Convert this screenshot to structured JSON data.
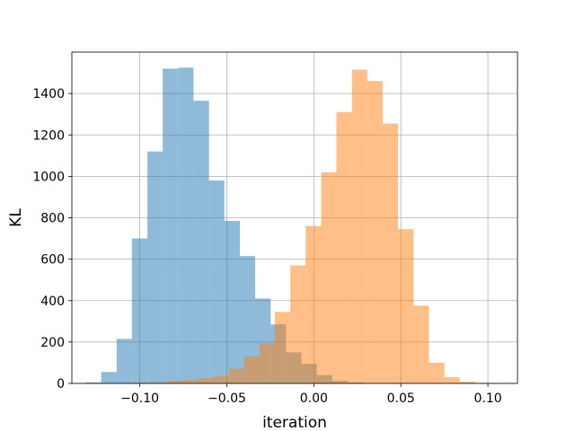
{
  "chart_data": {
    "type": "bar",
    "subtype": "histogram",
    "title": "",
    "xlabel": "iteration",
    "ylabel": "KL",
    "xlim": [
      -0.139,
      0.117
    ],
    "ylim": [
      0,
      1600
    ],
    "grid": true,
    "legend": "none",
    "x_ticks": [
      -0.1,
      -0.05,
      0.0,
      0.05,
      0.1
    ],
    "x_tick_labels": [
      "−0.10",
      "−0.05",
      "0.00",
      "0.05",
      "0.10"
    ],
    "y_ticks": [
      0,
      200,
      400,
      600,
      800,
      1000,
      1200,
      1400
    ],
    "y_tick_labels": [
      "0",
      "200",
      "400",
      "600",
      "800",
      "1000",
      "1200",
      "1400"
    ],
    "series": [
      {
        "color": "#1f77b4",
        "alpha": 0.5,
        "bins": [
          {
            "x0": -0.131,
            "x1": -0.1222,
            "value": 5
          },
          {
            "x0": -0.1222,
            "x1": -0.1133,
            "value": 55
          },
          {
            "x0": -0.1133,
            "x1": -0.1045,
            "value": 215
          },
          {
            "x0": -0.1045,
            "x1": -0.0956,
            "value": 700
          },
          {
            "x0": -0.0956,
            "x1": -0.0868,
            "value": 1120
          },
          {
            "x0": -0.0868,
            "x1": -0.0779,
            "value": 1520
          },
          {
            "x0": -0.0779,
            "x1": -0.0691,
            "value": 1525
          },
          {
            "x0": -0.0691,
            "x1": -0.0602,
            "value": 1365
          },
          {
            "x0": -0.0602,
            "x1": -0.0514,
            "value": 980
          },
          {
            "x0": -0.0514,
            "x1": -0.0425,
            "value": 785
          },
          {
            "x0": -0.0425,
            "x1": -0.0337,
            "value": 615
          },
          {
            "x0": -0.0337,
            "x1": -0.0248,
            "value": 410
          },
          {
            "x0": -0.0248,
            "x1": -0.016,
            "value": 285
          },
          {
            "x0": -0.016,
            "x1": -0.0071,
            "value": 150
          },
          {
            "x0": -0.0071,
            "x1": 0.0017,
            "value": 95
          },
          {
            "x0": 0.0017,
            "x1": 0.0106,
            "value": 40
          },
          {
            "x0": 0.0106,
            "x1": 0.0194,
            "value": 12
          },
          {
            "x0": 0.0194,
            "x1": 0.0283,
            "value": 4
          }
        ]
      },
      {
        "color": "#ff7f0e",
        "alpha": 0.5,
        "bins": [
          {
            "x0": -0.102,
            "x1": -0.0932,
            "value": 3
          },
          {
            "x0": -0.0932,
            "x1": -0.0843,
            "value": 6
          },
          {
            "x0": -0.0843,
            "x1": -0.0755,
            "value": 12
          },
          {
            "x0": -0.0755,
            "x1": -0.0666,
            "value": 18
          },
          {
            "x0": -0.0666,
            "x1": -0.0578,
            "value": 25
          },
          {
            "x0": -0.0578,
            "x1": -0.0489,
            "value": 35
          },
          {
            "x0": -0.0489,
            "x1": -0.0401,
            "value": 70
          },
          {
            "x0": -0.0401,
            "x1": -0.0312,
            "value": 130
          },
          {
            "x0": -0.0312,
            "x1": -0.0224,
            "value": 195
          },
          {
            "x0": -0.0224,
            "x1": -0.0135,
            "value": 345
          },
          {
            "x0": -0.0135,
            "x1": -0.0047,
            "value": 570
          },
          {
            "x0": -0.0047,
            "x1": 0.0042,
            "value": 760
          },
          {
            "x0": 0.0042,
            "x1": 0.013,
            "value": 1020
          },
          {
            "x0": 0.013,
            "x1": 0.0219,
            "value": 1310
          },
          {
            "x0": 0.0219,
            "x1": 0.0307,
            "value": 1515
          },
          {
            "x0": 0.0307,
            "x1": 0.0396,
            "value": 1460
          },
          {
            "x0": 0.0396,
            "x1": 0.0484,
            "value": 1255
          },
          {
            "x0": 0.0484,
            "x1": 0.0573,
            "value": 745
          },
          {
            "x0": 0.0573,
            "x1": 0.0661,
            "value": 375
          },
          {
            "x0": 0.0661,
            "x1": 0.075,
            "value": 100
          },
          {
            "x0": 0.075,
            "x1": 0.0838,
            "value": 30
          },
          {
            "x0": 0.0838,
            "x1": 0.0927,
            "value": 8
          },
          {
            "x0": 0.0927,
            "x1": 0.1015,
            "value": 3
          },
          {
            "x0": 0.1015,
            "x1": 0.1104,
            "value": 1
          }
        ]
      }
    ]
  }
}
